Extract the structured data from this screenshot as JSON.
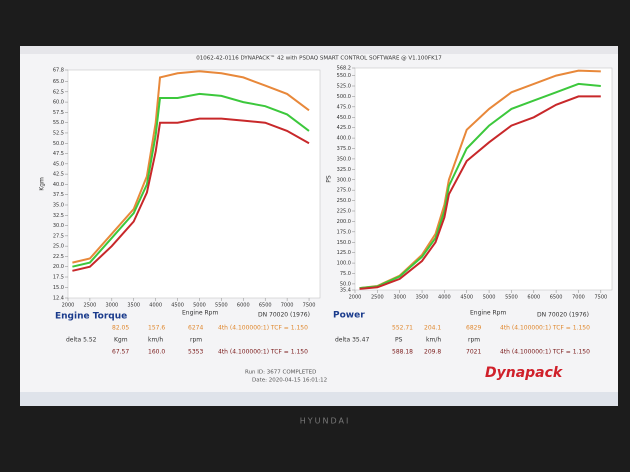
{
  "window_title": "01062-42-0116 DYNAPACK™ 42 with PSDAQ SMART CONTROL SOFTWARE @ V1.100FK17",
  "chart_data": [
    {
      "type": "line",
      "y_label": "Kgm",
      "x": [
        2100,
        2500,
        3000,
        3500,
        3800,
        4000,
        4100,
        4500,
        5000,
        5500,
        6000,
        6500,
        7000,
        7500
      ],
      "xlim": [
        2000,
        7750
      ],
      "xticks": [
        2000,
        2500,
        3000,
        3500,
        4000,
        4500,
        5000,
        5500,
        6000,
        6500,
        7000,
        7500
      ],
      "ylim": [
        12.4,
        67.8
      ],
      "yticks": [
        67.8,
        {
          "value": 65,
          "label": "65.0"
        },
        62.5,
        {
          "value": 60,
          "label": "60.0"
        },
        57.5,
        {
          "value": 55,
          "label": "55.0"
        },
        52.5,
        {
          "value": 50,
          "label": "50.0"
        },
        47.5,
        {
          "value": 45,
          "label": "45.0"
        },
        42.5,
        {
          "value": 40,
          "label": "40.0"
        },
        37.5,
        {
          "value": 35,
          "label": "35.0"
        },
        32.5,
        {
          "value": 30,
          "label": "30.0"
        },
        27.5,
        {
          "value": 25,
          "label": "25.0"
        },
        22.5,
        {
          "value": 20,
          "label": "20.0"
        },
        17.5,
        {
          "value": 15,
          "label": "15.0"
        },
        12.4
      ],
      "series": [
        {
          "color": "#e8883a",
          "values": [
            21,
            22,
            28,
            34,
            42,
            55,
            66,
            67,
            67.5,
            67,
            66,
            64,
            62,
            58
          ]
        },
        {
          "color": "#3cc83c",
          "values": [
            20,
            21,
            27,
            33,
            40,
            52,
            61,
            61,
            62,
            61.5,
            60,
            59,
            57,
            53
          ]
        },
        {
          "color": "#c8282a",
          "values": [
            19,
            20,
            25,
            31,
            38,
            48,
            55,
            55,
            56,
            56,
            55.5,
            55,
            53,
            50
          ]
        }
      ]
    },
    {
      "type": "line",
      "y_label": "PS",
      "x": [
        2100,
        2500,
        3000,
        3500,
        3800,
        4000,
        4100,
        4500,
        5000,
        5500,
        6000,
        6500,
        7000,
        7500
      ],
      "xlim": [
        2000,
        7750
      ],
      "xticks": [
        2000,
        2500,
        3000,
        3500,
        4000,
        4500,
        5000,
        5500,
        6000,
        6500,
        7000,
        7500
      ],
      "ylim": [
        35.4,
        568.2
      ],
      "yticks": [
        568.2,
        {
          "value": 550,
          "label": "550.0"
        },
        {
          "value": 525,
          "label": "525.0"
        },
        {
          "value": 500,
          "label": "500.0"
        },
        {
          "value": 475,
          "label": "475.0"
        },
        {
          "value": 450,
          "label": "450.0"
        },
        {
          "value": 425,
          "label": "425.0"
        },
        {
          "value": 400,
          "label": "400.0"
        },
        {
          "value": 375,
          "label": "375.0"
        },
        {
          "value": 350,
          "label": "350.0"
        },
        {
          "value": 325,
          "label": "325.0"
        },
        {
          "value": 300,
          "label": "300.0"
        },
        {
          "value": 275,
          "label": "275.0"
        },
        {
          "value": 250,
          "label": "250.0"
        },
        {
          "value": 225,
          "label": "225.0"
        },
        {
          "value": 200,
          "label": "200.0"
        },
        {
          "value": 175,
          "label": "175.0"
        },
        {
          "value": 150,
          "label": "150.0"
        },
        {
          "value": 125,
          "label": "125.0"
        },
        {
          "value": 100,
          "label": "100.0"
        },
        {
          "value": 75,
          "label": "75.0"
        },
        {
          "value": 50,
          "label": "50.0"
        },
        35.4
      ],
      "series": [
        {
          "color": "#e8883a",
          "values": [
            40,
            45,
            70,
            120,
            170,
            240,
            300,
            420,
            470,
            510,
            530,
            550,
            562,
            560
          ]
        },
        {
          "color": "#3cc83c",
          "values": [
            40,
            44,
            68,
            115,
            160,
            225,
            285,
            375,
            430,
            470,
            490,
            510,
            530,
            525
          ]
        },
        {
          "color": "#c8282a",
          "values": [
            38,
            42,
            62,
            105,
            150,
            210,
            265,
            345,
            390,
            430,
            450,
            480,
            500,
            500
          ]
        }
      ]
    }
  ],
  "info": {
    "torque": {
      "title": "Engine Torque",
      "rpm_label": "Engine Rpm",
      "dn": "DN 70020 (1976)",
      "rows": [
        [
          "82.05",
          "157.6",
          "6274",
          "4th (4.100000:1) TCF = 1.150"
        ],
        [
          "delta 5.52",
          "Kgm",
          "km/h",
          "rpm"
        ],
        [
          "67.57",
          "160.0",
          "5353",
          "4th (4.100000:1) TCF = 1.150"
        ]
      ]
    },
    "power": {
      "title": "Power",
      "rpm_label": "Engine Rpm",
      "dn": "DN 70020 (1976)",
      "rows": [
        [
          "552.71",
          "204.1",
          "6829",
          "4th (4.100000:1) TCF = 1.150"
        ],
        [
          "delta 35.47",
          "PS",
          "km/h",
          "rpm"
        ],
        [
          "588.18",
          "209.8",
          "7021",
          "4th (4.100000:1) TCF = 1.150"
        ]
      ]
    },
    "run_id": "Run ID: 3677 COMPLETED",
    "date": "Date: 2020-04-15 16:01:12",
    "logo": "Dynapack",
    "brand": "HYUNDAI"
  }
}
